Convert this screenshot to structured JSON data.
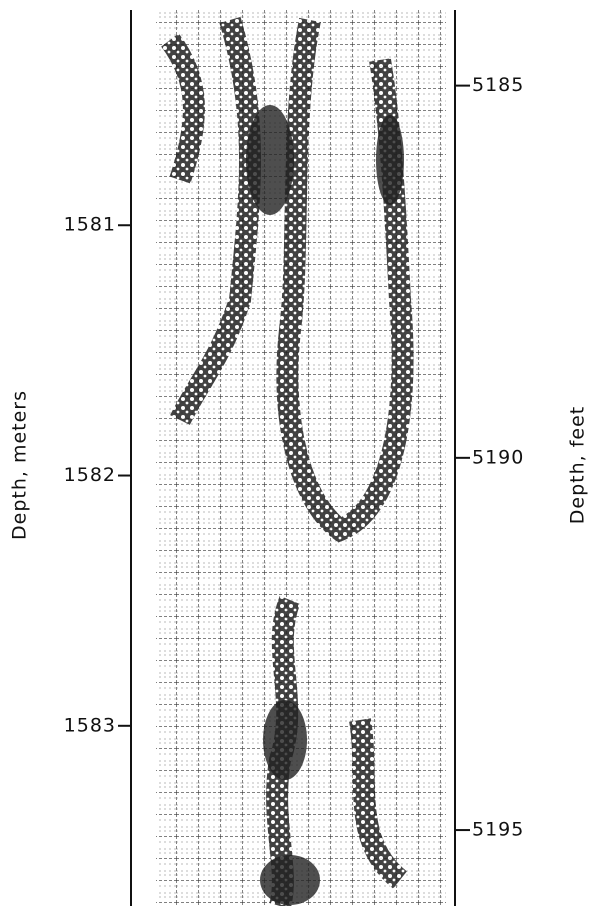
{
  "chart_data": {
    "type": "image-log",
    "ylabel": "Depth, meters",
    "y2label": "Depth, feet",
    "ylim": [
      1580.1,
      1583.72
    ],
    "yticks": [
      1581,
      1582,
      1583
    ],
    "y2lim": [
      5183.85,
      5196.02
    ],
    "y2ticks": [
      5185,
      5190,
      5195
    ],
    "y_direction": "down"
  }
}
